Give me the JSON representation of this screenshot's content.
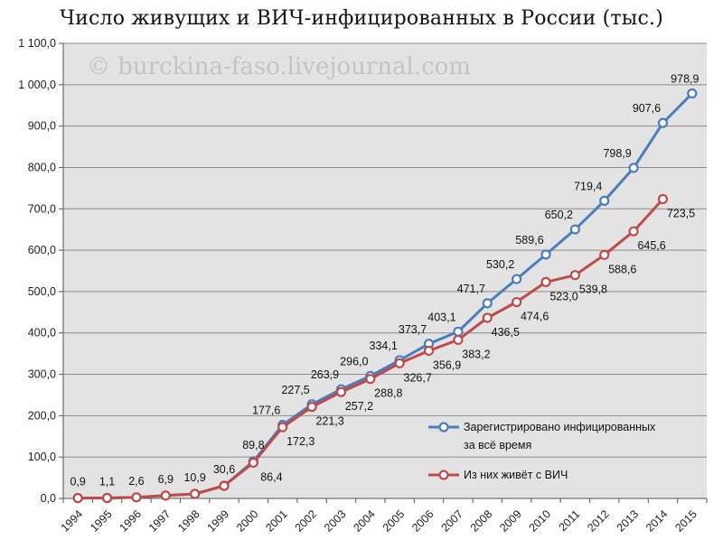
{
  "chart_data": {
    "type": "line",
    "title": "Число живущих и ВИЧ-инфицированных в России (тыс.)",
    "watermark": "© burckina-faso.livejournal.com",
    "categories": [
      "1994",
      "1995",
      "1996",
      "1997",
      "1998",
      "1999",
      "2000",
      "2001",
      "2002",
      "2003",
      "2004",
      "2005",
      "2006",
      "2007",
      "2008",
      "2009",
      "2010",
      "2011",
      "2012",
      "2013",
      "2014",
      "2015"
    ],
    "y_ticks": [
      "0,0",
      "100,0",
      "200,0",
      "300,0",
      "400,0",
      "500,0",
      "600,0",
      "700,0",
      "800,0",
      "900,0",
      "1 000,0",
      "1 100,0"
    ],
    "ylim": [
      0,
      1100
    ],
    "grid": true,
    "legend_position": "bottom-right",
    "series": [
      {
        "name": "Зарегистрировано инфицированных за всё время",
        "legend_lines": [
          "Зарегистрировано инфицированных",
          "за всё время"
        ],
        "color": "#4a7ebb",
        "values": [
          0.9,
          1.1,
          2.6,
          6.9,
          10.9,
          30.6,
          89.8,
          177.6,
          227.5,
          263.9,
          296.0,
          334.1,
          373.7,
          403.1,
          471.7,
          530.2,
          589.6,
          650.2,
          719.4,
          798.9,
          907.6,
          978.9
        ],
        "labels": [
          "0,9",
          "1,1",
          "2,6",
          "6,9",
          "10,9",
          "30,6",
          "89,8",
          "177,6",
          "227,5",
          "263,9",
          "296,0",
          "334,1",
          "373,7",
          "403,1",
          "471,7",
          "530,2",
          "589,6",
          "650,2",
          "719,4",
          "798,9",
          "907,6",
          "978,9"
        ]
      },
      {
        "name": "Из них живёт с ВИЧ",
        "legend_lines": [
          "Из них живёт с ВИЧ"
        ],
        "color": "#be4b48",
        "values": [
          0.9,
          1.1,
          2.6,
          6.9,
          10.9,
          30.6,
          86.4,
          172.3,
          221.3,
          257.2,
          288.8,
          326.7,
          356.9,
          383.2,
          436.5,
          474.6,
          523.0,
          539.8,
          588.6,
          645.6,
          723.5,
          null
        ],
        "labels": [
          "",
          "",
          "",
          "",
          "",
          "",
          "86,4",
          "172,3",
          "221,3",
          "257,2",
          "288,8",
          "326,7",
          "356,9",
          "383,2",
          "436,5",
          "474,6",
          "523,0",
          "539,8",
          "588,6",
          "645,6",
          "723,5",
          ""
        ]
      }
    ]
  }
}
